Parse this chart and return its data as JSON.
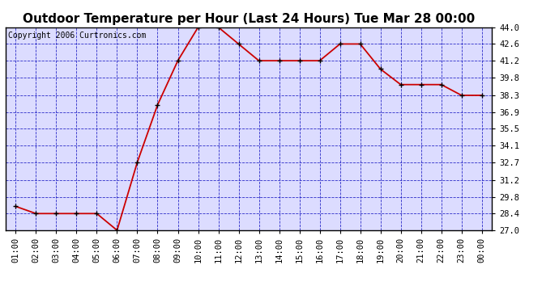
{
  "title": "Outdoor Temperature per Hour (Last 24 Hours) Tue Mar 28 00:00",
  "copyright_text": "Copyright 2006 Curtronics.com",
  "x_labels": [
    "01:00",
    "02:00",
    "03:00",
    "04:00",
    "05:00",
    "06:00",
    "07:00",
    "08:00",
    "09:00",
    "10:00",
    "11:00",
    "12:00",
    "13:00",
    "14:00",
    "15:00",
    "16:00",
    "17:00",
    "18:00",
    "19:00",
    "20:00",
    "21:00",
    "22:00",
    "23:00",
    "00:00"
  ],
  "y_values": [
    29.0,
    28.4,
    28.4,
    28.4,
    28.4,
    27.0,
    32.7,
    37.5,
    41.2,
    44.0,
    44.0,
    42.6,
    41.2,
    41.2,
    41.2,
    41.2,
    42.6,
    42.6,
    40.5,
    39.2,
    39.2,
    39.2,
    38.3,
    38.3
  ],
  "line_color": "#cc0000",
  "marker_color": "#000000",
  "background_color": "#ffffff",
  "plot_bg_color": "#dcdcff",
  "grid_color": "#0000bb",
  "title_fontsize": 11,
  "tick_fontsize": 7.5,
  "copyright_fontsize": 7,
  "ylim": [
    27.0,
    44.0
  ],
  "yticks": [
    27.0,
    28.4,
    29.8,
    31.2,
    32.7,
    34.1,
    35.5,
    36.9,
    38.3,
    39.8,
    41.2,
    42.6,
    44.0
  ]
}
